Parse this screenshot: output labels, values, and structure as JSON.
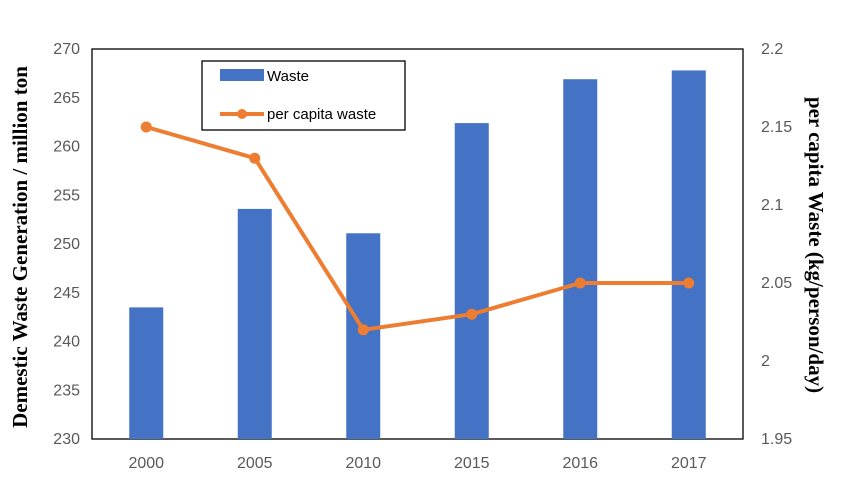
{
  "chart_data": {
    "type": "bar",
    "categories": [
      "2000",
      "2005",
      "2010",
      "2015",
      "2016",
      "2017"
    ],
    "series": [
      {
        "name": "Waste",
        "type": "bar",
        "axis": "left",
        "values": [
          243.5,
          253.6,
          251.1,
          262.4,
          266.9,
          267.8
        ],
        "color": "#4472C4"
      },
      {
        "name": "per capita waste",
        "type": "line",
        "axis": "right",
        "values": [
          2.15,
          2.13,
          2.02,
          2.03,
          2.05,
          2.05
        ],
        "color": "#ED7D31"
      }
    ],
    "ylabel": "Demestic Waste Generation / million ton",
    "y2label": "per capita Waste (kg/person/day)",
    "ylim": [
      230,
      270
    ],
    "y2lim": [
      1.95,
      2.2
    ],
    "yticks": [
      "230",
      "235",
      "240",
      "245",
      "250",
      "255",
      "260",
      "265",
      "270"
    ],
    "y2ticks": [
      "1.95",
      "2",
      "2.05",
      "2.1",
      "2.15",
      "2.2"
    ],
    "legend": "top-left",
    "grid": false
  }
}
